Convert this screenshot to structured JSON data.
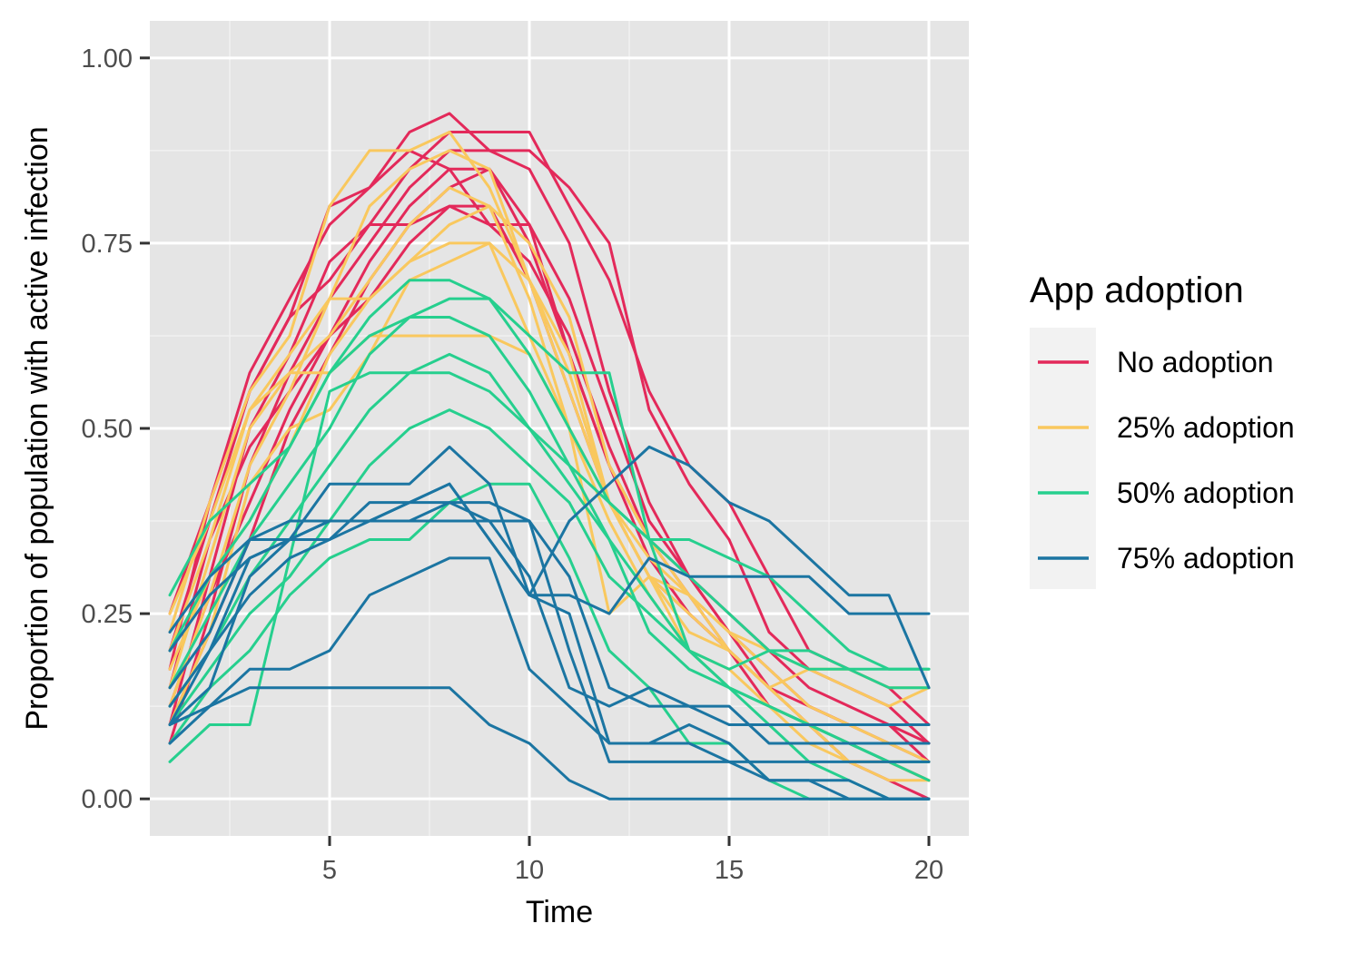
{
  "chart_data": {
    "type": "line",
    "title": "",
    "xlabel": "Time",
    "ylabel": "Proportion of population with active infection",
    "xlim": [
      0.5,
      21
    ],
    "ylim": [
      -0.05,
      1.05
    ],
    "x_ticks": [
      5,
      10,
      15,
      20
    ],
    "x_tick_labels": [
      "5",
      "10",
      "15",
      "20"
    ],
    "y_ticks": [
      0,
      0.25,
      0.5,
      0.75,
      1
    ],
    "y_tick_labels": [
      "0.00",
      "0.25",
      "0.50",
      "0.75",
      "1.00"
    ],
    "grid": true,
    "legend": {
      "title": "App adoption",
      "placement": "right",
      "entries": [
        {
          "key": "none",
          "label": "No adoption",
          "color": "#e3295a"
        },
        {
          "key": "p25",
          "label": "25% adoption",
          "color": "#f9c85e"
        },
        {
          "key": "p50",
          "label": "50% adoption",
          "color": "#26cf8e"
        },
        {
          "key": "p75",
          "label": "75% adoption",
          "color": "#1b75a2"
        }
      ]
    },
    "x": [
      1,
      2,
      3,
      4,
      5,
      6,
      7,
      8,
      9,
      10,
      11,
      12,
      13,
      14,
      15,
      16,
      17,
      18,
      19,
      20
    ],
    "series": [
      {
        "group": "none",
        "values": [
          0.175,
          0.4,
          0.55,
          0.65,
          0.8,
          0.825,
          0.9,
          0.925,
          0.875,
          0.85,
          0.75,
          0.55,
          0.4,
          0.3,
          0.25,
          0.2,
          0.15,
          0.125,
          0.1,
          0.05
        ]
      },
      {
        "group": "none",
        "values": [
          0.1,
          0.3,
          0.5,
          0.6,
          0.725,
          0.775,
          0.85,
          0.9,
          0.9,
          0.9,
          0.8,
          0.7,
          0.55,
          0.45,
          0.4,
          0.3,
          0.2,
          0.175,
          0.15,
          0.1
        ]
      },
      {
        "group": "none",
        "values": [
          0.075,
          0.25,
          0.45,
          0.575,
          0.675,
          0.75,
          0.825,
          0.875,
          0.875,
          0.875,
          0.825,
          0.75,
          0.525,
          0.425,
          0.35,
          0.225,
          0.175,
          0.15,
          0.125,
          0.075
        ]
      },
      {
        "group": "none",
        "values": [
          0.15,
          0.35,
          0.475,
          0.55,
          0.625,
          0.725,
          0.8,
          0.85,
          0.85,
          0.75,
          0.6,
          0.45,
          0.35,
          0.3,
          0.225,
          0.15,
          0.1,
          0.075,
          0.05,
          0.025
        ]
      },
      {
        "group": "none",
        "values": [
          0.2,
          0.375,
          0.55,
          0.65,
          0.7,
          0.775,
          0.775,
          0.8,
          0.8,
          0.7,
          0.55,
          0.4,
          0.3,
          0.25,
          0.2,
          0.15,
          0.125,
          0.1,
          0.075,
          0.05
        ]
      },
      {
        "group": "none",
        "values": [
          0.25,
          0.4,
          0.575,
          0.675,
          0.775,
          0.825,
          0.875,
          0.85,
          0.775,
          0.725,
          0.625,
          0.475,
          0.35,
          0.275,
          0.2,
          0.125,
          0.1,
          0.05,
          0.05,
          0.025
        ]
      },
      {
        "group": "none",
        "values": [
          0.125,
          0.275,
          0.4,
          0.525,
          0.625,
          0.675,
          0.75,
          0.8,
          0.775,
          0.775,
          0.675,
          0.525,
          0.375,
          0.3,
          0.225,
          0.175,
          0.125,
          0.1,
          0.1,
          0.075
        ]
      },
      {
        "group": "none",
        "values": [
          0.1,
          0.225,
          0.35,
          0.5,
          0.6,
          0.7,
          0.775,
          0.825,
          0.85,
          0.775,
          0.6,
          0.45,
          0.325,
          0.25,
          0.2,
          0.15,
          0.1,
          0.05,
          0.025,
          0.0
        ]
      },
      {
        "group": "p25",
        "values": [
          0.225,
          0.4,
          0.55,
          0.625,
          0.8,
          0.875,
          0.875,
          0.9,
          0.825,
          0.7,
          0.55,
          0.4,
          0.3,
          0.225,
          0.2,
          0.15,
          0.1,
          0.05,
          0.025,
          0.025
        ]
      },
      {
        "group": "p25",
        "values": [
          0.2,
          0.35,
          0.525,
          0.6,
          0.675,
          0.8,
          0.85,
          0.875,
          0.85,
          0.7,
          0.575,
          0.4,
          0.3,
          0.25,
          0.2,
          0.15,
          0.1,
          0.05,
          0.05,
          0.025
        ]
      },
      {
        "group": "p25",
        "values": [
          0.15,
          0.325,
          0.5,
          0.575,
          0.625,
          0.7,
          0.775,
          0.825,
          0.8,
          0.75,
          0.65,
          0.45,
          0.35,
          0.275,
          0.225,
          0.175,
          0.125,
          0.1,
          0.075,
          0.05
        ]
      },
      {
        "group": "p25",
        "values": [
          0.125,
          0.275,
          0.45,
          0.55,
          0.675,
          0.675,
          0.725,
          0.75,
          0.75,
          0.625,
          0.5,
          0.4,
          0.325,
          0.275,
          0.2,
          0.15,
          0.175,
          0.15,
          0.125,
          0.15
        ]
      },
      {
        "group": "p25",
        "values": [
          0.25,
          0.375,
          0.525,
          0.575,
          0.575,
          0.625,
          0.625,
          0.625,
          0.625,
          0.6,
          0.5,
          0.25,
          0.3,
          0.275,
          0.225,
          0.2,
          0.175,
          0.175,
          0.15,
          0.15
        ]
      },
      {
        "group": "p25",
        "values": [
          0.1,
          0.225,
          0.425,
          0.5,
          0.525,
          0.6,
          0.7,
          0.725,
          0.75,
          0.7,
          0.6,
          0.4,
          0.3,
          0.2,
          0.15,
          0.125,
          0.075,
          0.05,
          0.05,
          0.05
        ]
      },
      {
        "group": "p25",
        "values": [
          0.175,
          0.3,
          0.375,
          0.475,
          0.6,
          0.675,
          0.725,
          0.775,
          0.8,
          0.675,
          0.5,
          0.375,
          0.275,
          0.2,
          0.175,
          0.125,
          0.1,
          0.075,
          0.05,
          0.025
        ]
      },
      {
        "group": "p50",
        "values": [
          0.275,
          0.375,
          0.425,
          0.475,
          0.575,
          0.65,
          0.7,
          0.7,
          0.675,
          0.625,
          0.575,
          0.575,
          0.35,
          0.35,
          0.325,
          0.3,
          0.25,
          0.2,
          0.175,
          0.175
        ]
      },
      {
        "group": "p50",
        "values": [
          0.2,
          0.3,
          0.375,
          0.475,
          0.575,
          0.625,
          0.65,
          0.675,
          0.675,
          0.6,
          0.5,
          0.4,
          0.35,
          0.3,
          0.25,
          0.2,
          0.175,
          0.175,
          0.15,
          0.15
        ]
      },
      {
        "group": "p50",
        "values": [
          0.15,
          0.25,
          0.35,
          0.425,
          0.5,
          0.6,
          0.65,
          0.65,
          0.625,
          0.55,
          0.45,
          0.35,
          0.275,
          0.2,
          0.15,
          0.125,
          0.1,
          0.075,
          0.05,
          0.05
        ]
      },
      {
        "group": "p50",
        "values": [
          0.125,
          0.2,
          0.3,
          0.375,
          0.45,
          0.525,
          0.575,
          0.6,
          0.575,
          0.5,
          0.425,
          0.35,
          0.225,
          0.175,
          0.15,
          0.125,
          0.1,
          0.075,
          0.05,
          0.025
        ]
      },
      {
        "group": "p50",
        "values": [
          0.1,
          0.175,
          0.25,
          0.3,
          0.375,
          0.45,
          0.5,
          0.525,
          0.5,
          0.45,
          0.4,
          0.3,
          0.25,
          0.2,
          0.15,
          0.1,
          0.05,
          0.025,
          0.0,
          0.0
        ]
      },
      {
        "group": "p50",
        "values": [
          0.05,
          0.1,
          0.1,
          0.325,
          0.55,
          0.575,
          0.575,
          0.575,
          0.55,
          0.5,
          0.45,
          0.4,
          0.35,
          0.2,
          0.175,
          0.2,
          0.2,
          0.175,
          0.175,
          0.175
        ]
      },
      {
        "group": "p50",
        "values": [
          0.075,
          0.15,
          0.2,
          0.275,
          0.325,
          0.35,
          0.35,
          0.4,
          0.425,
          0.425,
          0.325,
          0.2,
          0.15,
          0.075,
          0.075,
          0.025,
          0.0,
          0.0,
          0.0,
          0.0
        ]
      },
      {
        "group": "p75",
        "values": [
          0.225,
          0.3,
          0.35,
          0.375,
          0.375,
          0.375,
          0.375,
          0.375,
          0.375,
          0.375,
          0.3,
          0.15,
          0.125,
          0.125,
          0.1,
          0.1,
          0.1,
          0.1,
          0.1,
          0.1
        ]
      },
      {
        "group": "p75",
        "values": [
          0.2,
          0.275,
          0.325,
          0.35,
          0.425,
          0.425,
          0.425,
          0.475,
          0.425,
          0.275,
          0.275,
          0.25,
          0.325,
          0.3,
          0.3,
          0.3,
          0.3,
          0.25,
          0.25,
          0.25
        ]
      },
      {
        "group": "p75",
        "values": [
          0.15,
          0.225,
          0.35,
          0.35,
          0.35,
          0.4,
          0.4,
          0.4,
          0.4,
          0.375,
          0.2,
          0.05,
          0.05,
          0.05,
          0.05,
          0.05,
          0.05,
          0.05,
          0.05,
          0.05
        ]
      },
      {
        "group": "p75",
        "values": [
          0.1,
          0.15,
          0.3,
          0.35,
          0.375,
          0.375,
          0.4,
          0.425,
          0.35,
          0.275,
          0.375,
          0.425,
          0.475,
          0.45,
          0.4,
          0.375,
          0.325,
          0.275,
          0.275,
          0.15
        ]
      },
      {
        "group": "p75",
        "values": [
          0.125,
          0.2,
          0.275,
          0.325,
          0.35,
          0.375,
          0.375,
          0.4,
          0.375,
          0.3,
          0.15,
          0.125,
          0.15,
          0.125,
          0.125,
          0.075,
          0.075,
          0.075,
          0.075,
          0.075
        ]
      },
      {
        "group": "p75",
        "values": [
          0.075,
          0.125,
          0.175,
          0.175,
          0.2,
          0.275,
          0.3,
          0.325,
          0.325,
          0.175,
          0.125,
          0.075,
          0.075,
          0.1,
          0.075,
          0.025,
          0.025,
          0.025,
          0.0,
          0.0
        ]
      },
      {
        "group": "p75",
        "values": [
          0.1,
          0.125,
          0.15,
          0.15,
          0.15,
          0.15,
          0.15,
          0.15,
          0.1,
          0.075,
          0.025,
          0.0,
          0.0,
          0.0,
          0.0,
          0.0,
          0.0,
          0.0,
          0.0,
          0.0
        ]
      },
      {
        "group": "p75",
        "values": [
          0.1,
          0.2,
          0.325,
          0.35,
          0.375,
          0.375,
          0.4,
          0.425,
          0.35,
          0.275,
          0.25,
          0.075,
          0.075,
          0.075,
          0.05,
          0.025,
          0.025,
          0.0,
          0.0,
          0.0
        ]
      }
    ]
  }
}
